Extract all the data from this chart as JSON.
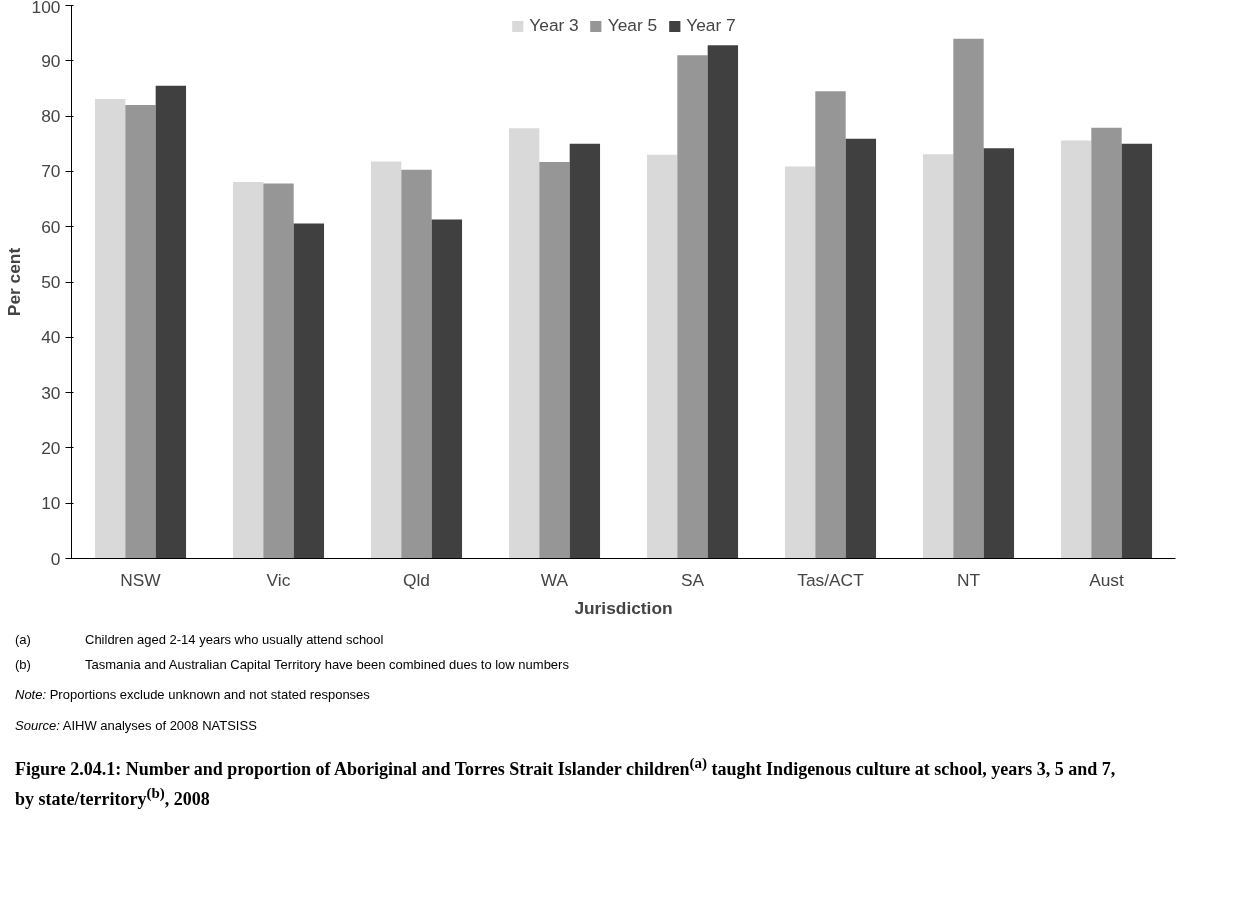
{
  "chart_data": {
    "type": "bar",
    "title": "Figure 2.04.1: Number and proportion of Aboriginal and Torres Strait Islander children$^{(a)}$ taught Indigenous culture at school, years 3, 5 and 7, by state/territory$^{(b)}$, 2008",
    "xlabel": "Jurisdiction",
    "ylabel": "Per cent",
    "categories": [
      "NSW",
      "Vic",
      "Qld",
      "WA",
      "SA",
      "Tas/ACT",
      "NT",
      "Aust"
    ],
    "series": [
      {
        "name": "Year 3",
        "color": "#d9d9d9",
        "values": [
          83.1,
          68.1,
          71.8,
          77.8,
          73.0,
          70.9,
          73.1,
          75.6
        ]
      },
      {
        "name": "Year 5",
        "color": "#969696",
        "values": [
          82.0,
          67.8,
          70.3,
          71.7,
          91.0,
          84.5,
          94.0,
          77.9
        ]
      },
      {
        "name": "Year 7",
        "color": "#404040",
        "values": [
          85.5,
          60.6,
          61.3,
          75.0,
          92.8,
          75.9,
          74.2,
          75.0
        ]
      }
    ],
    "ylim": [
      0,
      100
    ],
    "yticks": [
      0,
      10,
      20,
      30,
      40,
      50,
      60,
      70,
      80,
      90,
      100
    ],
    "grid": false,
    "legend": "top",
    "annotations": [
      "(a)\tChildren aged 2-14 years who usually attend school",
      "(b)\tTasmania and Australian Capital Territory have been combined dues to low numbers",
      "Note: Proportions exclude unknown and not stated responses",
      "Source: AIHW analyses of 2008 NATSISS"
    ]
  }
}
